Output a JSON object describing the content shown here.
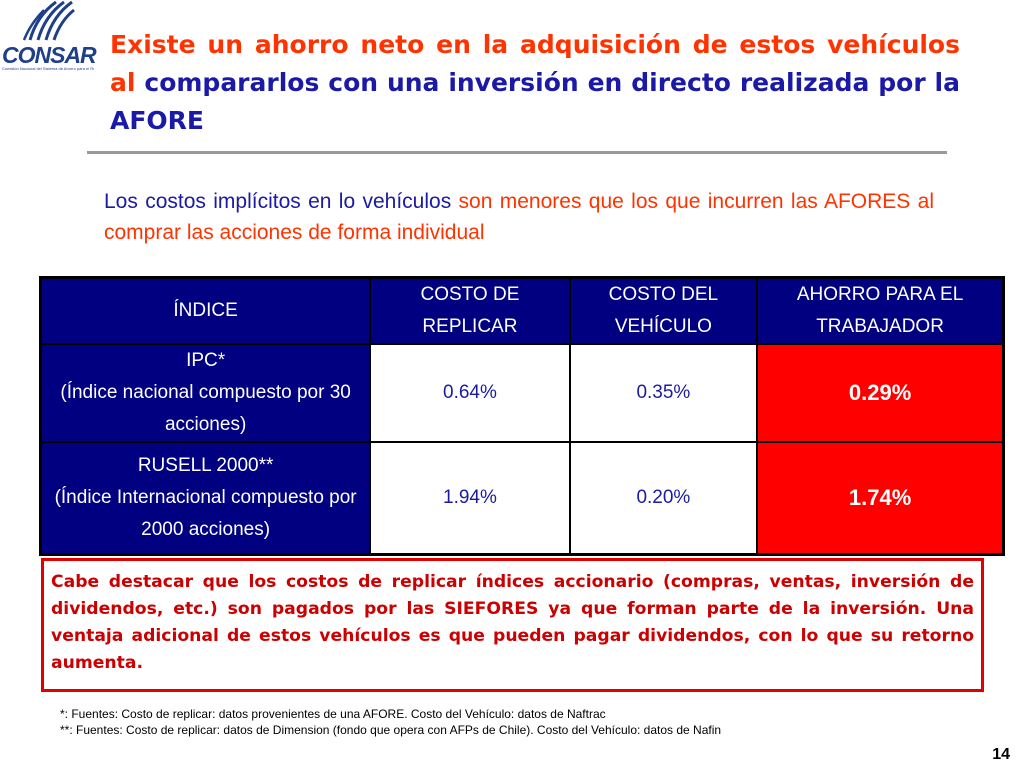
{
  "logo": {
    "text": "CONSAR",
    "subtext": "Comisión Nacional del Sistema de Ahorro para el Retiro"
  },
  "title": {
    "part_red": "Existe un ahorro neto en la adquisición de estos vehículos al",
    "part_blue": "compararlos con una inversión en directo realizada por la AFORE"
  },
  "subtitle": {
    "part_blue": "Los costos implícitos en lo vehículos",
    "part_red": "son menores que los que incurren las AFORES al comprar las acciones de forma individual"
  },
  "table": {
    "headers": [
      "ÍNDICE",
      "COSTO DE REPLICAR",
      "COSTO DEL VEHÍCULO",
      "AHORRO PARA EL TRABAJADOR"
    ],
    "rows": [
      {
        "index_name": "IPC*",
        "index_desc": "(Índice nacional compuesto por 30 acciones)",
        "replicate_cost": "0.64%",
        "vehicle_cost": "0.35%",
        "savings": "0.29%"
      },
      {
        "index_name": "RUSELL 2000**",
        "index_desc": "(Índice Internacional compuesto por 2000 acciones)",
        "replicate_cost": "1.94%",
        "vehicle_cost": "0.20%",
        "savings": "1.74%"
      }
    ]
  },
  "note": "Cabe destacar que los costos de replicar índices accionario (compras, ventas, inversión de dividendos, etc.) son pagados por las SIEFORES ya que forman parte de la inversión. Una ventaja adicional de estos vehículos es que pueden pagar dividendos, con lo que su retorno aumenta.",
  "footnotes": [
    "*: Fuentes: Costo de replicar: datos provenientes de una AFORE. Costo del Vehículo: datos de Naftrac",
    "**: Fuentes: Costo de replicar: datos de Dimension (fondo que opera con AFPs de Chile). Costo del Vehículo: datos de Nafin"
  ],
  "page_number": "14",
  "colors": {
    "title_red": "#ff3300",
    "title_blue": "#1a1aa6",
    "table_header": "#000080",
    "savings_highlight": "#ff0000",
    "note_border": "#e00000"
  }
}
